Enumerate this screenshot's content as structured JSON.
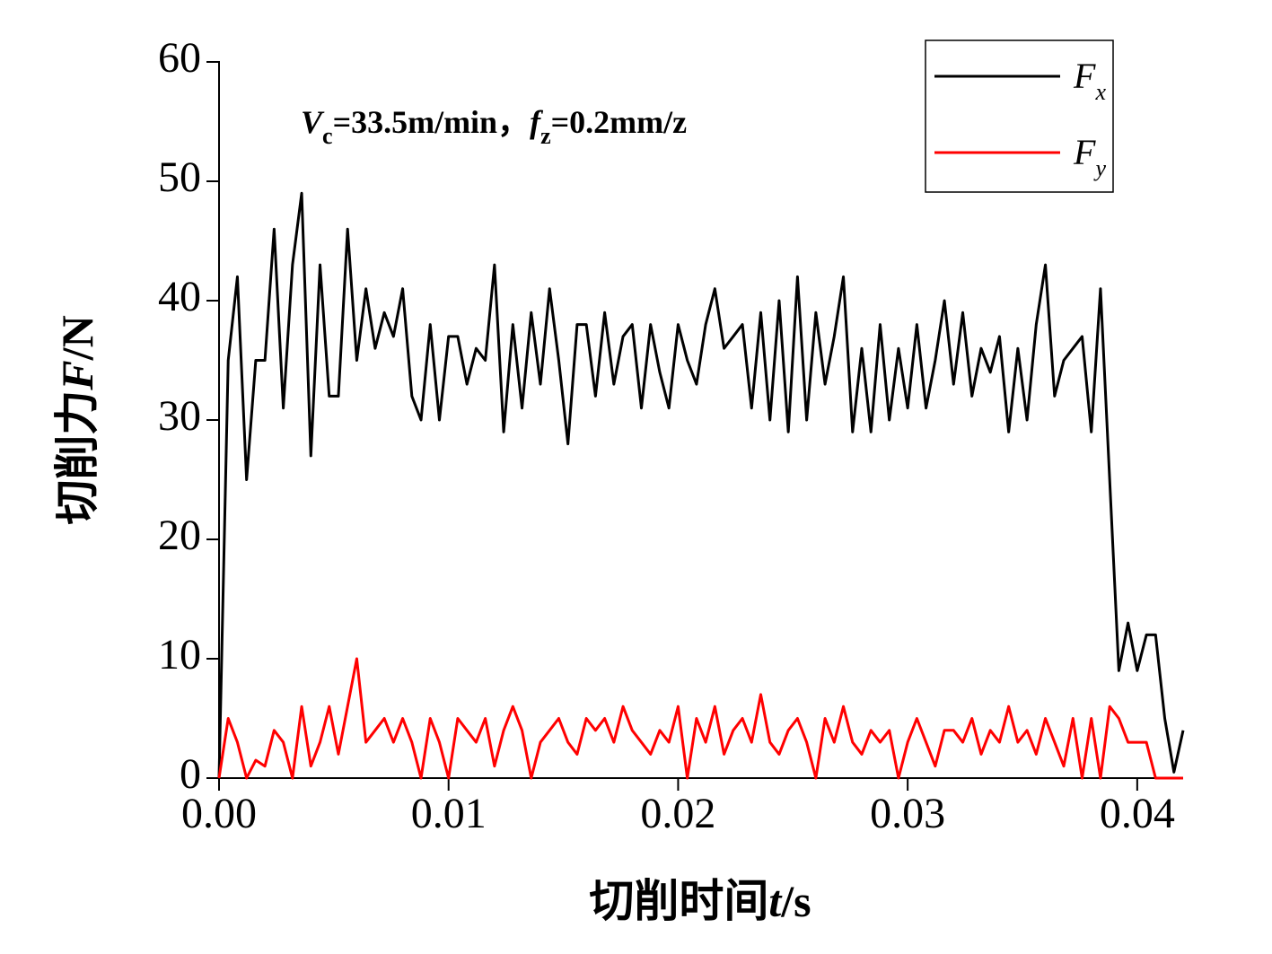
{
  "chart_data": {
    "type": "line",
    "annotation": [
      "V",
      "c",
      "=33.5m/min，",
      "f",
      "z",
      "=0.2mm/z"
    ],
    "xlabel": [
      "切削时间",
      "t",
      "/s"
    ],
    "ylabel": [
      "切削力",
      "F",
      "/N"
    ],
    "x": [
      0,
      0.0004,
      0.0008,
      0.0012,
      0.0016,
      0.002,
      0.0024,
      0.0028,
      0.0032,
      0.0036,
      0.004,
      0.0044,
      0.0048,
      0.0052,
      0.0056,
      0.006,
      0.0064,
      0.0068,
      0.0072,
      0.0076,
      0.008,
      0.0084,
      0.0088,
      0.0092,
      0.0096,
      0.01,
      0.0104,
      0.0108,
      0.0112,
      0.0116,
      0.012,
      0.0124,
      0.0128,
      0.0132,
      0.0136,
      0.014,
      0.0144,
      0.0148,
      0.0152,
      0.0156,
      0.016,
      0.0164,
      0.0168,
      0.0172,
      0.0176,
      0.018,
      0.0184,
      0.0188,
      0.0192,
      0.0196,
      0.02,
      0.0204,
      0.0208,
      0.0212,
      0.0216,
      0.022,
      0.0224,
      0.0228,
      0.0232,
      0.0236,
      0.024,
      0.0244,
      0.0248,
      0.0252,
      0.0256,
      0.026,
      0.0264,
      0.0268,
      0.0272,
      0.0276,
      0.028,
      0.0284,
      0.0288,
      0.0292,
      0.0296,
      0.03,
      0.0304,
      0.0308,
      0.0312,
      0.0316,
      0.032,
      0.0324,
      0.0328,
      0.0332,
      0.0336,
      0.034,
      0.0344,
      0.0348,
      0.0352,
      0.0356,
      0.036,
      0.0364,
      0.0368,
      0.0372,
      0.0376,
      0.038,
      0.0384,
      0.0388,
      0.0392,
      0.0396,
      0.04,
      0.0404,
      0.0408,
      0.0412,
      0.0416,
      0.042
    ],
    "series": [
      {
        "name": "Fx",
        "color": "#000000",
        "values": [
          0,
          35,
          42,
          25,
          35,
          35,
          46,
          31,
          43,
          49,
          27,
          43,
          32,
          32,
          46,
          35,
          41,
          36,
          39,
          37,
          41,
          32,
          30,
          38,
          30,
          37,
          37,
          33,
          36,
          35,
          43,
          29,
          38,
          31,
          39,
          33,
          41,
          35,
          28,
          38,
          38,
          32,
          39,
          33,
          37,
          38,
          31,
          38,
          34,
          31,
          38,
          35,
          33,
          38,
          41,
          36,
          37,
          38,
          31,
          39,
          30,
          40,
          29,
          42,
          30,
          39,
          33,
          37,
          42,
          29,
          36,
          29,
          38,
          30,
          36,
          31,
          38,
          31,
          35,
          40,
          33,
          39,
          32,
          36,
          34,
          37,
          29,
          36,
          30,
          38,
          43,
          32,
          35,
          36,
          37,
          29,
          41,
          25,
          9,
          13,
          9,
          12,
          12,
          5,
          0.5,
          4
        ]
      },
      {
        "name": "Fy",
        "color": "#ff0000",
        "values": [
          0,
          5,
          3,
          0,
          1.5,
          1,
          4,
          3,
          0,
          6,
          1,
          3,
          6,
          2,
          6,
          10,
          3,
          4,
          5,
          3,
          5,
          3,
          0,
          5,
          3,
          0,
          5,
          4,
          3,
          5,
          1,
          4,
          6,
          4,
          0,
          3,
          4,
          5,
          3,
          2,
          5,
          4,
          5,
          3,
          6,
          4,
          3,
          2,
          4,
          3,
          6,
          0,
          5,
          3,
          6,
          2,
          4,
          5,
          3,
          7,
          3,
          2,
          4,
          5,
          3,
          0,
          5,
          3,
          6,
          3,
          2,
          4,
          3,
          4,
          0,
          3,
          5,
          3,
          1,
          4,
          4,
          3,
          5,
          2,
          4,
          3,
          6,
          3,
          4,
          2,
          5,
          3,
          1,
          5,
          0,
          5,
          0,
          6,
          5,
          3,
          3,
          3,
          0,
          0,
          0,
          0
        ]
      }
    ],
    "xlim": [
      0,
      0.042
    ],
    "xticks": [
      {
        "value": 0,
        "label": "0.00"
      },
      0.01,
      0.02,
      0.03,
      0.04
    ],
    "ylim": [
      0,
      60
    ],
    "yticks": [
      0,
      10,
      20,
      30,
      40,
      50,
      60
    ],
    "grid": false,
    "legend": "upper right"
  }
}
